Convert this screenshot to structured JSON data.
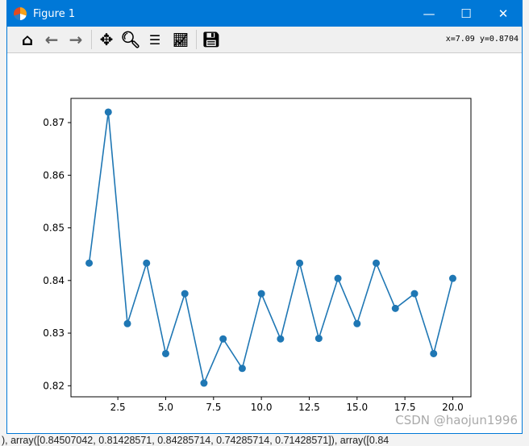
{
  "window": {
    "title": "Figure 1",
    "minimize": "—",
    "maximize": "☐",
    "close": "✕"
  },
  "toolbar": {
    "coords": "x=7.09 y=0.8704",
    "icons": [
      "home-icon",
      "back-icon",
      "forward-icon",
      "pan-icon",
      "zoom-icon",
      "subplots-icon",
      "edit-axes-icon",
      "save-icon"
    ]
  },
  "watermark": "CSDN @haojun1996",
  "background_text": "), array([0.84507042, 0.81428571, 0.84285714, 0.74285714, 0.71428571]), array([0.84",
  "chart_data": {
    "type": "line",
    "marker": "circle",
    "color": "#1f77b4",
    "x": [
      1,
      2,
      3,
      4,
      5,
      6,
      7,
      8,
      9,
      10,
      11,
      12,
      13,
      14,
      15,
      16,
      17,
      18,
      19,
      20
    ],
    "y": [
      0.8433,
      0.872,
      0.8318,
      0.8433,
      0.8261,
      0.8375,
      0.8205,
      0.8289,
      0.8233,
      0.8375,
      0.8289,
      0.8433,
      0.829,
      0.8404,
      0.8318,
      0.8433,
      0.8347,
      0.8375,
      0.8261,
      0.8404
    ],
    "xlim": [
      0.05,
      20.95
    ],
    "ylim": [
      0.8179,
      0.8746
    ],
    "xticks": [
      "2.5",
      "5.0",
      "7.5",
      "10.0",
      "12.5",
      "15.0",
      "17.5",
      "20.0"
    ],
    "yticks": [
      "0.82",
      "0.83",
      "0.84",
      "0.85",
      "0.86",
      "0.87"
    ],
    "grid": false
  }
}
